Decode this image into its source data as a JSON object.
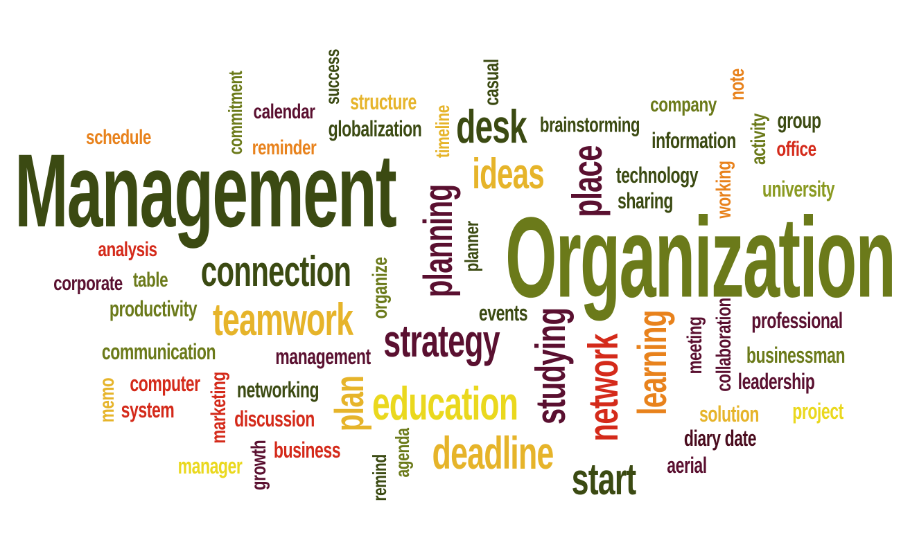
{
  "palette": {
    "dark_olive": "#3b4a12",
    "olive": "#6b7a1a",
    "olive_light": "#8a9a22",
    "maroon": "#5a1030",
    "dark_maroon": "#4a0c1e",
    "red": "#d42a1a",
    "orange": "#e8821c",
    "gold": "#e6b42a",
    "yellow": "#ead81e"
  },
  "words": [
    {
      "text": "Management",
      "color": "dark_olive",
      "rotate": false
    },
    {
      "text": "Organization",
      "color": "olive",
      "rotate": false
    },
    {
      "text": "schedule",
      "color": "orange",
      "rotate": false
    },
    {
      "text": "commitment",
      "color": "olive",
      "rotate": true
    },
    {
      "text": "calendar",
      "color": "maroon",
      "rotate": false
    },
    {
      "text": "reminder",
      "color": "orange",
      "rotate": false
    },
    {
      "text": "success",
      "color": "dark_olive",
      "rotate": true
    },
    {
      "text": "structure",
      "color": "gold",
      "rotate": false
    },
    {
      "text": "globalization",
      "color": "dark_olive",
      "rotate": false
    },
    {
      "text": "timeline",
      "color": "gold",
      "rotate": true
    },
    {
      "text": "casual",
      "color": "dark_olive",
      "rotate": true
    },
    {
      "text": "desk",
      "color": "dark_olive",
      "rotate": false
    },
    {
      "text": "ideas",
      "color": "gold",
      "rotate": false
    },
    {
      "text": "brainstorming",
      "color": "dark_olive",
      "rotate": false
    },
    {
      "text": "place",
      "color": "maroon",
      "rotate": true
    },
    {
      "text": "company",
      "color": "olive",
      "rotate": false
    },
    {
      "text": "note",
      "color": "orange",
      "rotate": true
    },
    {
      "text": "information",
      "color": "dark_olive",
      "rotate": false
    },
    {
      "text": "activity",
      "color": "olive",
      "rotate": true
    },
    {
      "text": "group",
      "color": "dark_olive",
      "rotate": false
    },
    {
      "text": "office",
      "color": "red",
      "rotate": false
    },
    {
      "text": "technology",
      "color": "dark_olive",
      "rotate": false
    },
    {
      "text": "sharing",
      "color": "dark_olive",
      "rotate": false
    },
    {
      "text": "working",
      "color": "orange",
      "rotate": true
    },
    {
      "text": "university",
      "color": "olive_light",
      "rotate": false
    },
    {
      "text": "planning",
      "color": "maroon",
      "rotate": true
    },
    {
      "text": "planner",
      "color": "dark_olive",
      "rotate": true
    },
    {
      "text": "analysis",
      "color": "red",
      "rotate": false
    },
    {
      "text": "corporate",
      "color": "maroon",
      "rotate": false
    },
    {
      "text": "table",
      "color": "olive",
      "rotate": false
    },
    {
      "text": "connection",
      "color": "dark_olive",
      "rotate": false
    },
    {
      "text": "organize",
      "color": "olive",
      "rotate": true
    },
    {
      "text": "productivity",
      "color": "olive",
      "rotate": false
    },
    {
      "text": "teamwork",
      "color": "gold",
      "rotate": false
    },
    {
      "text": "events",
      "color": "dark_olive",
      "rotate": false
    },
    {
      "text": "strategy",
      "color": "maroon",
      "rotate": false
    },
    {
      "text": "studying",
      "color": "maroon",
      "rotate": true
    },
    {
      "text": "network",
      "color": "red",
      "rotate": true
    },
    {
      "text": "learning",
      "color": "orange",
      "rotate": true
    },
    {
      "text": "meeting",
      "color": "maroon",
      "rotate": true
    },
    {
      "text": "collaboration",
      "color": "maroon",
      "rotate": true
    },
    {
      "text": "professional",
      "color": "maroon",
      "rotate": false
    },
    {
      "text": "communication",
      "color": "olive",
      "rotate": false
    },
    {
      "text": "management",
      "color": "maroon",
      "rotate": false
    },
    {
      "text": "businessman",
      "color": "olive",
      "rotate": false
    },
    {
      "text": "memo",
      "color": "gold",
      "rotate": true
    },
    {
      "text": "computer",
      "color": "red",
      "rotate": false
    },
    {
      "text": "system",
      "color": "red",
      "rotate": false
    },
    {
      "text": "marketing",
      "color": "red",
      "rotate": true
    },
    {
      "text": "networking",
      "color": "dark_olive",
      "rotate": false
    },
    {
      "text": "plan",
      "color": "gold",
      "rotate": true
    },
    {
      "text": "education",
      "color": "yellow",
      "rotate": false
    },
    {
      "text": "leadership",
      "color": "maroon",
      "rotate": false
    },
    {
      "text": "discussion",
      "color": "red",
      "rotate": false
    },
    {
      "text": "solution",
      "color": "gold",
      "rotate": false
    },
    {
      "text": "project",
      "color": "yellow",
      "rotate": false
    },
    {
      "text": "diary date",
      "color": "dark_maroon",
      "rotate": false
    },
    {
      "text": "deadline",
      "color": "gold",
      "rotate": false
    },
    {
      "text": "manager",
      "color": "yellow",
      "rotate": false
    },
    {
      "text": "growth",
      "color": "maroon",
      "rotate": true
    },
    {
      "text": "business",
      "color": "red",
      "rotate": false
    },
    {
      "text": "remind",
      "color": "dark_olive",
      "rotate": true
    },
    {
      "text": "agenda",
      "color": "olive",
      "rotate": true
    },
    {
      "text": "start",
      "color": "dark_olive",
      "rotate": false
    },
    {
      "text": "aerial",
      "color": "maroon",
      "rotate": false
    }
  ]
}
